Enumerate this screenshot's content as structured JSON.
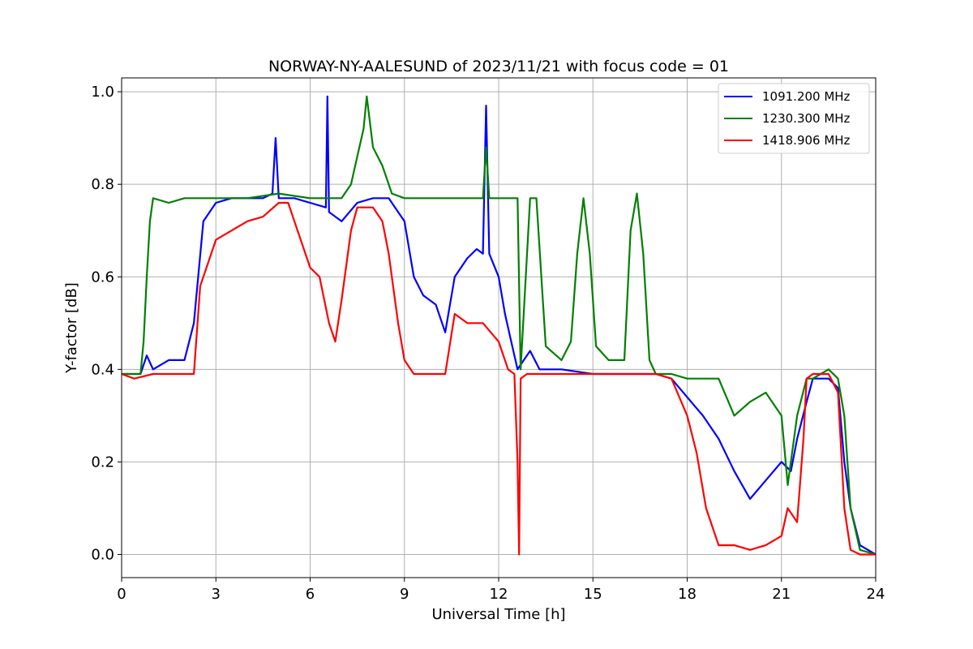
{
  "chart_data": {
    "type": "line",
    "title": "NORWAY-NY-AALESUND of 2023/11/21 with focus code = 01",
    "xlabel": "Universal Time [h]",
    "ylabel": "Y-factor [dB]",
    "xlim": [
      0,
      24
    ],
    "ylim": [
      -0.05,
      1.03
    ],
    "xticks": [
      0,
      3,
      6,
      9,
      12,
      15,
      18,
      21,
      24
    ],
    "yticks": [
      0.0,
      0.2,
      0.4,
      0.6,
      0.8,
      1.0
    ],
    "grid": true,
    "legend_position": "top-right",
    "series": [
      {
        "name": "1091.200 MHz",
        "color": "#0000ff",
        "x": [
          0,
          0.6,
          0.8,
          1.0,
          1.5,
          2.0,
          2.3,
          2.6,
          3.0,
          3.5,
          4.0,
          4.5,
          4.8,
          4.9,
          5.0,
          5.5,
          6.0,
          6.5,
          6.55,
          6.6,
          7.0,
          7.5,
          8.0,
          8.5,
          9.0,
          9.3,
          9.6,
          10.0,
          10.3,
          10.6,
          11.0,
          11.3,
          11.5,
          11.6,
          11.7,
          12.0,
          12.2,
          12.4,
          12.6,
          12.8,
          13.0,
          13.3,
          14.0,
          15.0,
          16.0,
          16.5,
          17.0,
          17.5,
          18.0,
          18.5,
          19.0,
          19.5,
          20.0,
          20.5,
          21.0,
          21.3,
          21.5,
          21.8,
          22.0,
          22.5,
          22.8,
          23.0,
          23.2,
          23.5,
          24.0
        ],
        "y": [
          0.39,
          0.39,
          0.43,
          0.4,
          0.42,
          0.42,
          0.5,
          0.72,
          0.76,
          0.77,
          0.77,
          0.77,
          0.78,
          0.9,
          0.77,
          0.77,
          0.76,
          0.75,
          0.99,
          0.74,
          0.72,
          0.76,
          0.77,
          0.77,
          0.72,
          0.6,
          0.56,
          0.54,
          0.48,
          0.6,
          0.64,
          0.66,
          0.65,
          0.97,
          0.65,
          0.6,
          0.52,
          0.46,
          0.4,
          0.42,
          0.44,
          0.4,
          0.4,
          0.39,
          0.39,
          0.39,
          0.39,
          0.38,
          0.34,
          0.3,
          0.25,
          0.18,
          0.12,
          0.16,
          0.2,
          0.18,
          0.25,
          0.33,
          0.38,
          0.38,
          0.36,
          0.2,
          0.1,
          0.02,
          0.0
        ]
      },
      {
        "name": "1230.300 MHz",
        "color": "#008000",
        "x": [
          0,
          0.6,
          0.7,
          0.8,
          0.9,
          1.0,
          1.5,
          2.0,
          3.0,
          4.0,
          5.0,
          6.0,
          7.0,
          7.3,
          7.5,
          7.7,
          7.8,
          8.0,
          8.3,
          8.6,
          9.0,
          10.0,
          11.0,
          11.5,
          11.6,
          11.7,
          12.0,
          12.5,
          12.6,
          12.7,
          13.0,
          13.2,
          13.5,
          14.0,
          14.3,
          14.5,
          14.7,
          14.9,
          15.1,
          15.5,
          16.0,
          16.2,
          16.4,
          16.6,
          16.8,
          17.0,
          17.5,
          18.0,
          18.5,
          19.0,
          19.5,
          20.0,
          20.5,
          21.0,
          21.2,
          21.5,
          21.8,
          22.0,
          22.5,
          22.8,
          23.0,
          23.2,
          23.5,
          24.0
        ],
        "y": [
          0.39,
          0.39,
          0.46,
          0.6,
          0.72,
          0.77,
          0.76,
          0.77,
          0.77,
          0.77,
          0.78,
          0.77,
          0.77,
          0.8,
          0.86,
          0.92,
          0.99,
          0.88,
          0.84,
          0.78,
          0.77,
          0.77,
          0.77,
          0.77,
          0.88,
          0.77,
          0.77,
          0.77,
          0.77,
          0.4,
          0.77,
          0.77,
          0.45,
          0.42,
          0.46,
          0.65,
          0.77,
          0.65,
          0.45,
          0.42,
          0.42,
          0.7,
          0.78,
          0.65,
          0.42,
          0.39,
          0.39,
          0.38,
          0.38,
          0.38,
          0.3,
          0.33,
          0.35,
          0.3,
          0.15,
          0.3,
          0.38,
          0.38,
          0.4,
          0.38,
          0.3,
          0.1,
          0.01,
          0.0
        ]
      },
      {
        "name": "1418.906 MHz",
        "color": "#ff0000",
        "x": [
          0,
          0.4,
          1.0,
          2.0,
          2.3,
          2.5,
          3.0,
          3.5,
          4.0,
          4.5,
          5.0,
          5.3,
          5.5,
          6.0,
          6.3,
          6.6,
          6.8,
          7.0,
          7.3,
          7.5,
          8.0,
          8.3,
          8.5,
          8.8,
          9.0,
          9.3,
          10.0,
          10.3,
          10.6,
          11.0,
          11.5,
          12.0,
          12.3,
          12.5,
          12.6,
          12.65,
          12.7,
          12.9,
          13.5,
          15.0,
          16.0,
          17.0,
          17.5,
          18.0,
          18.3,
          18.6,
          19.0,
          19.5,
          20.0,
          20.5,
          21.0,
          21.2,
          21.5,
          21.7,
          21.8,
          22.0,
          22.5,
          22.8,
          23.0,
          23.2,
          23.5,
          24.0
        ],
        "y": [
          0.39,
          0.38,
          0.39,
          0.39,
          0.39,
          0.58,
          0.68,
          0.7,
          0.72,
          0.73,
          0.76,
          0.76,
          0.72,
          0.62,
          0.6,
          0.5,
          0.46,
          0.55,
          0.7,
          0.75,
          0.75,
          0.72,
          0.65,
          0.5,
          0.42,
          0.39,
          0.39,
          0.39,
          0.52,
          0.5,
          0.5,
          0.46,
          0.4,
          0.39,
          0.2,
          0.0,
          0.38,
          0.39,
          0.39,
          0.39,
          0.39,
          0.39,
          0.38,
          0.3,
          0.22,
          0.1,
          0.02,
          0.02,
          0.01,
          0.02,
          0.04,
          0.1,
          0.07,
          0.25,
          0.38,
          0.39,
          0.39,
          0.35,
          0.1,
          0.01,
          0.0,
          0.0
        ]
      }
    ]
  }
}
